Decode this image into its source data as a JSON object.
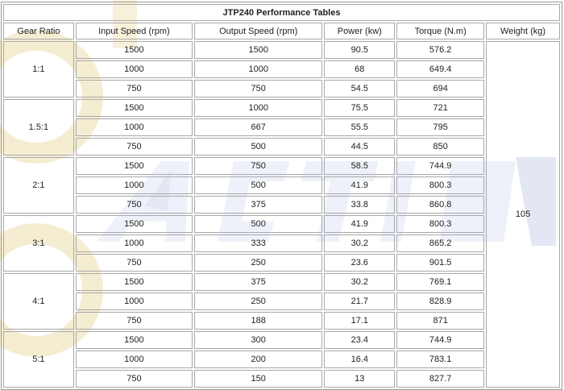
{
  "title": "JTP240 Performance Tables",
  "headers": {
    "gear_ratio": "Gear Ratio",
    "input_speed": "Input Speed (rpm)",
    "output_speed": "Output Speed (rpm)",
    "power": "Power (kw)",
    "torque": "Torque (N.m)",
    "weight": "Weight (kg)"
  },
  "weight": "105",
  "groups": [
    {
      "ratio": "1:1",
      "rows": [
        {
          "input": "1500",
          "output": "1500",
          "power": "90.5",
          "torque": "576.2"
        },
        {
          "input": "1000",
          "output": "1000",
          "power": "68",
          "torque": "649.4"
        },
        {
          "input": "750",
          "output": "750",
          "power": "54.5",
          "torque": "694"
        }
      ]
    },
    {
      "ratio": "1.5:1",
      "rows": [
        {
          "input": "1500",
          "output": "1000",
          "power": "75.5",
          "torque": "721"
        },
        {
          "input": "1000",
          "output": "667",
          "power": "55.5",
          "torque": "795"
        },
        {
          "input": "750",
          "output": "500",
          "power": "44.5",
          "torque": "850"
        }
      ]
    },
    {
      "ratio": "2:1",
      "rows": [
        {
          "input": "1500",
          "output": "750",
          "power": "58.5",
          "torque": "744.9"
        },
        {
          "input": "1000",
          "output": "500",
          "power": "41.9",
          "torque": "800.3"
        },
        {
          "input": "750",
          "output": "375",
          "power": "33.8",
          "torque": "860.8"
        }
      ]
    },
    {
      "ratio": "3:1",
      "rows": [
        {
          "input": "1500",
          "output": "500",
          "power": "41.9",
          "torque": "800.3"
        },
        {
          "input": "1000",
          "output": "333",
          "power": "30.2",
          "torque": "865.2"
        },
        {
          "input": "750",
          "output": "250",
          "power": "23.6",
          "torque": "901.5"
        }
      ]
    },
    {
      "ratio": "4:1",
      "rows": [
        {
          "input": "1500",
          "output": "375",
          "power": "30.2",
          "torque": "769.1"
        },
        {
          "input": "1000",
          "output": "250",
          "power": "21.7",
          "torque": "828.9"
        },
        {
          "input": "750",
          "output": "188",
          "power": "17.1",
          "torque": "871"
        }
      ]
    },
    {
      "ratio": "5:1",
      "rows": [
        {
          "input": "1500",
          "output": "300",
          "power": "23.4",
          "torque": "744.9"
        },
        {
          "input": "1000",
          "output": "200",
          "power": "16.4",
          "torque": "783.1"
        },
        {
          "input": "750",
          "output": "150",
          "power": "13",
          "torque": "827.7"
        }
      ]
    }
  ]
}
